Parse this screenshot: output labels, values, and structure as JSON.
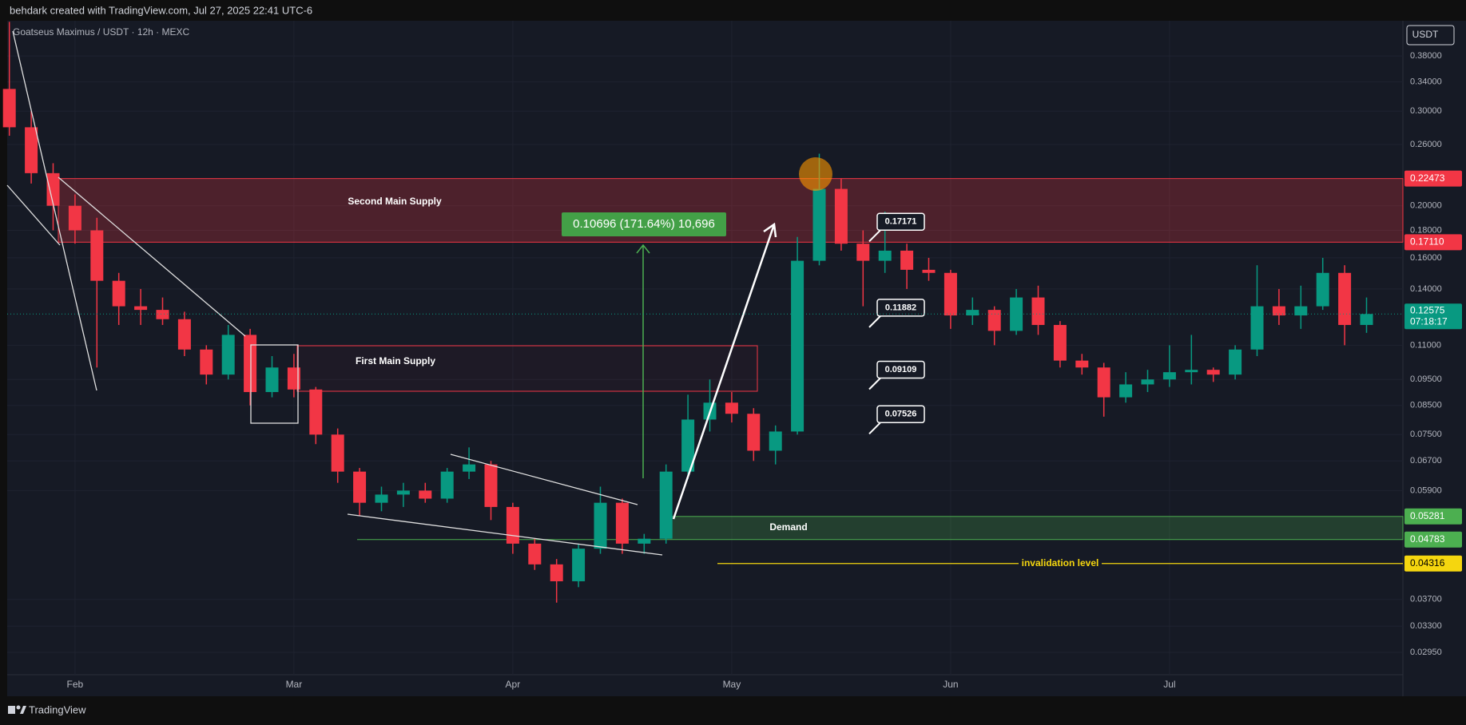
{
  "header": {
    "credit": "behdark created with TradingView.com, Jul 27, 2025 22:41 UTC-6",
    "symbol": "Goatseus Maximus / USDT · 12h · MEXC"
  },
  "chart_data": {
    "type": "candlestick",
    "categories": [
      null,
      null,
      null,
      "Feb",
      null,
      null,
      null,
      null,
      null,
      null,
      null,
      null,
      null,
      "Mar",
      null,
      null,
      null,
      null,
      null,
      null,
      null,
      null,
      null,
      "Apr",
      null,
      null,
      null,
      null,
      null,
      null,
      null,
      null,
      null,
      "May",
      null,
      null,
      null,
      null,
      null,
      null,
      null,
      null,
      null,
      "Jun",
      null,
      null,
      null,
      null,
      null,
      null,
      null,
      null,
      null,
      "Jul",
      null,
      null,
      null,
      null,
      null,
      null,
      null,
      null,
      null
    ],
    "open": [
      0.33,
      0.28,
      0.23,
      0.2,
      0.18,
      0.145,
      0.13,
      0.128,
      0.123,
      0.108,
      0.097,
      0.115,
      0.09,
      0.1,
      0.091,
      0.075,
      0.064,
      0.056,
      0.058,
      0.059,
      0.057,
      0.064,
      0.066,
      0.055,
      0.047,
      0.043,
      0.04,
      0.046,
      0.056,
      0.047,
      0.048,
      0.064,
      0.08,
      0.086,
      0.082,
      0.07,
      0.076,
      0.158,
      0.215,
      0.17,
      0.158,
      0.165,
      0.152,
      0.15,
      0.125,
      0.128,
      0.117,
      0.135,
      0.12,
      0.103,
      0.1,
      0.088,
      0.093,
      0.095,
      0.098,
      0.099,
      0.097,
      0.108,
      0.13,
      0.125,
      0.13,
      0.15,
      0.12
    ],
    "high": [
      0.44,
      0.3,
      0.24,
      0.21,
      0.19,
      0.15,
      0.14,
      0.135,
      0.127,
      0.11,
      0.12,
      0.118,
      0.105,
      0.106,
      0.092,
      0.077,
      0.065,
      0.06,
      0.061,
      0.061,
      0.065,
      0.071,
      0.067,
      0.056,
      0.048,
      0.044,
      0.047,
      0.06,
      0.057,
      0.049,
      0.066,
      0.089,
      0.095,
      0.09,
      0.084,
      0.078,
      0.175,
      0.25,
      0.225,
      0.18,
      0.195,
      0.17,
      0.16,
      0.152,
      0.135,
      0.13,
      0.14,
      0.142,
      0.122,
      0.106,
      0.102,
      0.098,
      0.099,
      0.11,
      0.115,
      0.1,
      0.11,
      0.155,
      0.14,
      0.142,
      0.16,
      0.155,
      0.135
    ],
    "low": [
      0.27,
      0.22,
      0.18,
      0.17,
      0.1,
      0.12,
      0.12,
      0.12,
      0.105,
      0.093,
      0.095,
      0.085,
      0.088,
      0.088,
      0.072,
      0.061,
      0.053,
      0.054,
      0.055,
      0.056,
      0.056,
      0.062,
      0.052,
      0.045,
      0.042,
      0.0365,
      0.039,
      0.045,
      0.045,
      0.045,
      0.047,
      0.062,
      0.076,
      0.079,
      0.067,
      0.066,
      0.075,
      0.155,
      0.165,
      0.13,
      0.15,
      0.14,
      0.145,
      0.118,
      0.12,
      0.11,
      0.115,
      0.115,
      0.1,
      0.097,
      0.081,
      0.086,
      0.09,
      0.092,
      0.093,
      0.094,
      0.095,
      0.105,
      0.12,
      0.118,
      0.128,
      0.11,
      0.116
    ],
    "close": [
      0.28,
      0.23,
      0.2,
      0.18,
      0.145,
      0.13,
      0.128,
      0.123,
      0.108,
      0.097,
      0.115,
      0.09,
      0.1,
      0.091,
      0.075,
      0.064,
      0.056,
      0.058,
      0.059,
      0.057,
      0.064,
      0.066,
      0.055,
      0.047,
      0.043,
      0.04,
      0.046,
      0.056,
      0.047,
      0.048,
      0.064,
      0.08,
      0.086,
      0.082,
      0.07,
      0.076,
      0.158,
      0.215,
      0.17,
      0.158,
      0.165,
      0.152,
      0.15,
      0.125,
      0.128,
      0.117,
      0.135,
      0.12,
      0.103,
      0.1,
      0.088,
      0.093,
      0.095,
      0.098,
      0.099,
      0.097,
      0.108,
      0.13,
      0.125,
      0.13,
      0.15,
      0.12,
      0.12575
    ],
    "up_color": "#089981",
    "down_color": "#f23645",
    "log_scale": true,
    "grid": true,
    "ylim": [
      0.0268,
      0.442
    ],
    "yticks": [
      {
        "value": 0.38,
        "label": "0.38000"
      },
      {
        "value": 0.34,
        "label": "0.34000"
      },
      {
        "value": 0.3,
        "label": "0.30000"
      },
      {
        "value": 0.26,
        "label": "0.26000"
      },
      {
        "value": 0.2,
        "label": "0.20000"
      },
      {
        "value": 0.18,
        "label": "0.18000"
      },
      {
        "value": 0.16,
        "label": "0.16000"
      },
      {
        "value": 0.14,
        "label": "0.14000"
      },
      {
        "value": 0.11,
        "label": "0.11000"
      },
      {
        "value": 0.095,
        "label": "0.09500"
      },
      {
        "value": 0.085,
        "label": "0.08500"
      },
      {
        "value": 0.075,
        "label": "0.07500"
      },
      {
        "value": 0.067,
        "label": "0.06700"
      },
      {
        "value": 0.059,
        "label": "0.05900"
      },
      {
        "value": 0.037,
        "label": "0.03700"
      },
      {
        "value": 0.033,
        "label": "0.03300"
      },
      {
        "value": 0.0295,
        "label": "0.02950"
      }
    ],
    "currency": "USDT",
    "countdown": "07:18:17",
    "price_labels": [
      {
        "value": 0.22473,
        "color": "#f23645"
      },
      {
        "value": 0.1711,
        "label": "0.17110",
        "color": "#f23645"
      },
      {
        "value": 0.05281,
        "color": "#4caf50"
      },
      {
        "value": 0.04783,
        "color": "#4caf50"
      },
      {
        "value": 0.04316,
        "color": "#f5d60f"
      }
    ],
    "callouts": [
      0.17171,
      0.11882,
      0.09109,
      0.07526
    ],
    "annotations": {
      "second_supply": "Second Main Supply",
      "first_supply": "First Main Supply",
      "demand": "Demand",
      "invalidation": "invalidation level",
      "measure": "0.10696 (171.64%) 10,696"
    }
  },
  "footer": {
    "brand": "TradingView"
  }
}
